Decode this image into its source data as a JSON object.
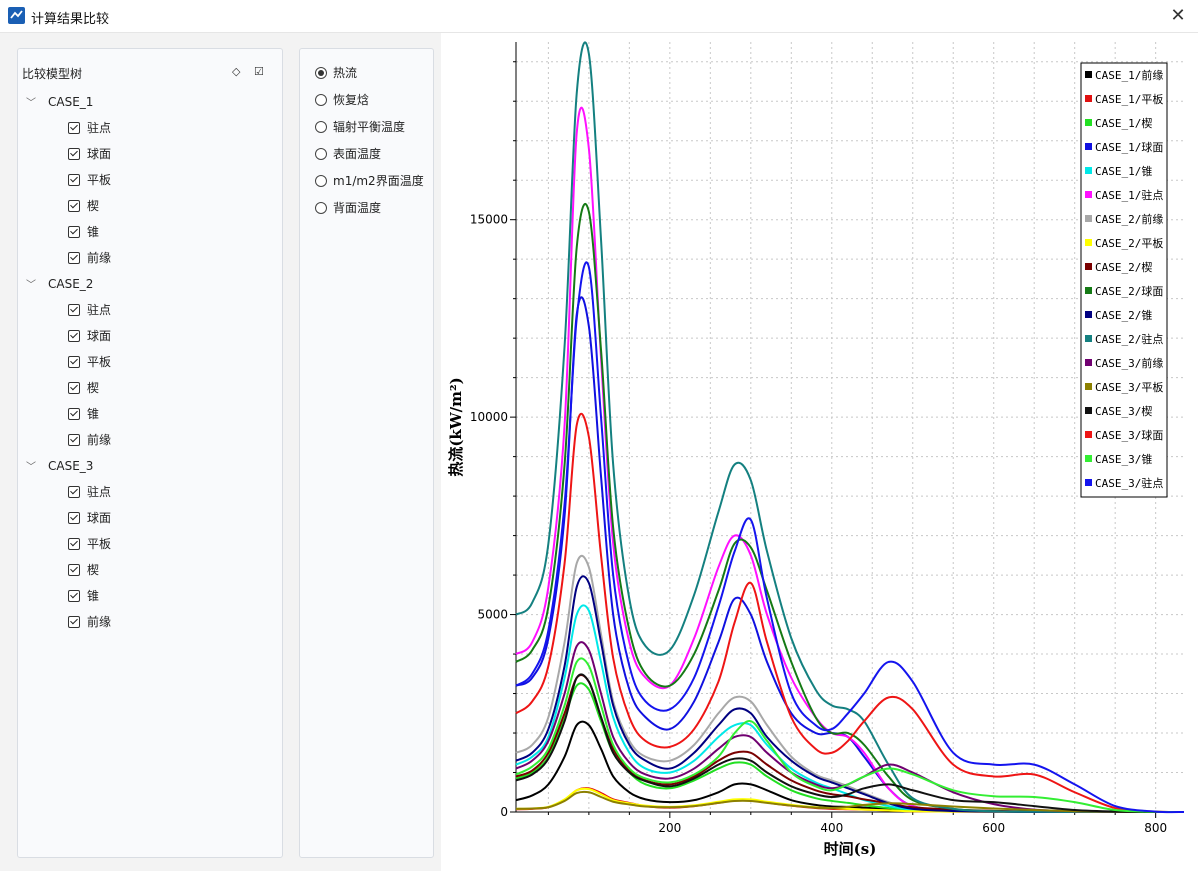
{
  "window": {
    "title": "计算结果比较",
    "close_label": "✕"
  },
  "tree": {
    "title": "比较模型树",
    "cases": [
      {
        "name": "CASE_1",
        "items": [
          "驻点",
          "球面",
          "平板",
          "楔",
          "锥",
          "前缘"
        ]
      },
      {
        "name": "CASE_2",
        "items": [
          "驻点",
          "球面",
          "平板",
          "楔",
          "锥",
          "前缘"
        ]
      },
      {
        "name": "CASE_3",
        "items": [
          "驻点",
          "球面",
          "平板",
          "楔",
          "锥",
          "前缘"
        ]
      }
    ]
  },
  "options": {
    "selected": 0,
    "items": [
      "热流",
      "恢复焓",
      "辐射平衡温度",
      "表面温度",
      "m1/m2界面温度",
      "背面温度"
    ]
  },
  "chart_data": {
    "type": "line",
    "xlabel": "时间(s)",
    "ylabel": "热流(kW/m²)",
    "xlim": [
      10,
      835
    ],
    "ylim": [
      0,
      19500
    ],
    "xticks": [
      200,
      400,
      600,
      800
    ],
    "yticks": [
      0,
      5000,
      10000,
      15000
    ],
    "grid": true,
    "legend_position": "top-right",
    "series": [
      {
        "name": "CASE_1/前缘",
        "color": "#000000",
        "x": [
          10,
          30,
          50,
          70,
          85,
          100,
          115,
          130,
          150,
          170,
          200,
          230,
          260,
          280,
          300,
          320,
          350,
          380,
          400,
          420,
          440,
          470,
          500,
          550,
          600,
          650,
          700,
          750,
          800,
          835
        ],
        "y": [
          300,
          420,
          700,
          1400,
          2200,
          2200,
          1600,
          900,
          500,
          320,
          250,
          300,
          500,
          700,
          700,
          550,
          300,
          180,
          140,
          130,
          110,
          70,
          40,
          20,
          10,
          5,
          0,
          0,
          0,
          0
        ]
      },
      {
        "name": "CASE_1/平板",
        "color": "#e01010",
        "x": [
          10,
          30,
          50,
          70,
          85,
          100,
          115,
          130,
          150,
          170,
          200,
          230,
          260,
          280,
          300,
          320,
          350,
          380,
          400,
          420,
          440,
          470,
          500,
          550,
          600,
          650,
          700,
          750,
          800,
          835
        ],
        "y": [
          70,
          80,
          120,
          300,
          550,
          600,
          480,
          320,
          230,
          150,
          110,
          150,
          230,
          300,
          300,
          240,
          160,
          100,
          80,
          70,
          60,
          40,
          20,
          10,
          5,
          0,
          0,
          0,
          0,
          0
        ]
      },
      {
        "name": "CASE_1/楔",
        "color": "#22e022",
        "x": [
          10,
          30,
          50,
          70,
          85,
          100,
          115,
          130,
          150,
          170,
          200,
          230,
          260,
          280,
          300,
          320,
          350,
          380,
          400,
          420,
          440,
          470,
          500,
          550,
          600,
          650,
          700,
          750,
          800,
          835
        ],
        "y": [
          850,
          1000,
          1400,
          2400,
          3200,
          3100,
          2300,
          1500,
          1000,
          700,
          600,
          800,
          1100,
          1250,
          1200,
          900,
          550,
          350,
          280,
          230,
          170,
          100,
          50,
          20,
          10,
          0,
          0,
          0,
          0,
          0
        ]
      },
      {
        "name": "CASE_1/球面",
        "color": "#1010e0",
        "x": [
          10,
          30,
          50,
          70,
          85,
          100,
          115,
          130,
          150,
          170,
          200,
          230,
          260,
          280,
          300,
          320,
          350,
          380,
          400,
          420,
          440,
          470,
          500,
          550,
          600,
          650,
          700,
          750,
          800,
          835
        ],
        "y": [
          3200,
          3400,
          4400,
          7500,
          12600,
          12300,
          8500,
          5000,
          3100,
          2400,
          2100,
          2800,
          4300,
          5400,
          5000,
          3800,
          2500,
          2000,
          2000,
          1900,
          1400,
          600,
          150,
          40,
          10,
          0,
          0,
          0,
          0,
          0
        ]
      },
      {
        "name": "CASE_1/锥",
        "color": "#00e8e8",
        "x": [
          10,
          30,
          50,
          70,
          85,
          100,
          115,
          130,
          150,
          170,
          200,
          230,
          260,
          280,
          300,
          320,
          350,
          380,
          400,
          420,
          440,
          470,
          500,
          550,
          600,
          650,
          700,
          750,
          800,
          835
        ],
        "y": [
          1200,
          1400,
          1900,
          3400,
          5000,
          5100,
          3800,
          2400,
          1500,
          1100,
          1000,
          1300,
          1900,
          2200,
          2200,
          1700,
          1100,
          750,
          600,
          450,
          300,
          150,
          60,
          20,
          10,
          0,
          0,
          0,
          0,
          0
        ]
      },
      {
        "name": "CASE_1/驻点",
        "color": "#ff10ff",
        "x": [
          10,
          30,
          50,
          70,
          85,
          100,
          115,
          130,
          150,
          170,
          200,
          230,
          260,
          280,
          300,
          320,
          350,
          380,
          400,
          420,
          440,
          470,
          500,
          550,
          600,
          650,
          700,
          750,
          800,
          835
        ],
        "y": [
          4000,
          4300,
          5700,
          9800,
          17200,
          16800,
          11500,
          6800,
          4300,
          3400,
          3200,
          4400,
          6200,
          7000,
          6500,
          5000,
          3400,
          2400,
          2000,
          1900,
          1500,
          600,
          150,
          40,
          10,
          0,
          0,
          0,
          0,
          0
        ]
      },
      {
        "name": "CASE_2/前缘",
        "color": "#a8a8a8",
        "x": [
          10,
          30,
          50,
          70,
          85,
          100,
          115,
          130,
          150,
          170,
          200,
          230,
          260,
          280,
          300,
          320,
          350,
          380,
          400,
          420,
          440,
          470,
          500,
          550,
          600,
          650,
          700,
          750,
          800,
          835
        ],
        "y": [
          1500,
          1700,
          2400,
          4300,
          6300,
          6200,
          4500,
          2800,
          1800,
          1400,
          1300,
          1700,
          2500,
          2900,
          2800,
          2200,
          1400,
          950,
          800,
          650,
          480,
          250,
          90,
          30,
          10,
          0,
          0,
          0,
          0,
          0
        ]
      },
      {
        "name": "CASE_2/平板",
        "color": "#ffff00",
        "x": [
          10,
          30,
          50,
          70,
          85,
          100,
          115,
          130,
          150,
          170,
          200,
          230,
          260,
          280,
          300,
          320,
          350,
          380,
          400,
          420,
          440,
          470,
          500,
          550,
          600,
          650,
          700,
          750,
          800,
          835
        ],
        "y": [
          80,
          90,
          130,
          320,
          550,
          580,
          450,
          300,
          220,
          160,
          130,
          170,
          260,
          320,
          320,
          260,
          180,
          120,
          100,
          80,
          60,
          40,
          20,
          10,
          5,
          0,
          0,
          0,
          0,
          0
        ]
      },
      {
        "name": "CASE_2/楔",
        "color": "#7a0000",
        "x": [
          10,
          30,
          50,
          70,
          85,
          100,
          115,
          130,
          150,
          170,
          200,
          230,
          260,
          280,
          300,
          320,
          350,
          380,
          400,
          420,
          440,
          470,
          500,
          550,
          600,
          650,
          700,
          750,
          800,
          835
        ],
        "y": [
          900,
          1050,
          1500,
          2500,
          3400,
          3300,
          2400,
          1600,
          1050,
          800,
          700,
          900,
          1300,
          1500,
          1500,
          1200,
          800,
          550,
          450,
          400,
          320,
          220,
          120,
          60,
          30,
          10,
          0,
          0,
          0,
          0
        ]
      },
      {
        "name": "CASE_2/球面",
        "color": "#157a15",
        "x": [
          10,
          30,
          50,
          70,
          85,
          100,
          115,
          130,
          150,
          170,
          200,
          230,
          260,
          280,
          300,
          320,
          350,
          380,
          400,
          420,
          440,
          470,
          500,
          550,
          600,
          650,
          700,
          750,
          800,
          835
        ],
        "y": [
          3800,
          4100,
          5200,
          8800,
          14300,
          15200,
          11700,
          7200,
          4600,
          3500,
          3200,
          4000,
          5600,
          6800,
          6700,
          5600,
          3800,
          2400,
          2000,
          2000,
          1700,
          900,
          300,
          80,
          20,
          5,
          0,
          0,
          0,
          0
        ]
      },
      {
        "name": "CASE_2/锥",
        "color": "#000080",
        "x": [
          10,
          30,
          50,
          70,
          85,
          100,
          115,
          130,
          150,
          170,
          200,
          230,
          260,
          280,
          300,
          320,
          350,
          380,
          400,
          420,
          440,
          470,
          500,
          550,
          600,
          650,
          700,
          750,
          800,
          835
        ],
        "y": [
          1300,
          1500,
          2100,
          3700,
          5700,
          5800,
          4300,
          2700,
          1700,
          1300,
          1100,
          1500,
          2200,
          2600,
          2500,
          1900,
          1300,
          900,
          750,
          600,
          450,
          220,
          80,
          25,
          10,
          0,
          0,
          0,
          0,
          0
        ]
      },
      {
        "name": "CASE_2/驻点",
        "color": "#148080",
        "x": [
          10,
          30,
          50,
          70,
          85,
          100,
          115,
          130,
          150,
          170,
          200,
          230,
          260,
          280,
          300,
          320,
          350,
          380,
          400,
          420,
          440,
          470,
          500,
          550,
          600,
          650,
          700,
          750,
          800,
          835
        ],
        "y": [
          5000,
          5300,
          6800,
          11800,
          18200,
          19200,
          14500,
          8800,
          5400,
          4200,
          4100,
          5500,
          7600,
          8800,
          8400,
          6600,
          4400,
          3100,
          2700,
          2600,
          2300,
          1200,
          350,
          80,
          20,
          5,
          0,
          0,
          0,
          0
        ]
      },
      {
        "name": "CASE_3/前缘",
        "color": "#700070",
        "x": [
          10,
          30,
          50,
          70,
          85,
          100,
          115,
          130,
          150,
          170,
          200,
          230,
          260,
          280,
          300,
          320,
          350,
          380,
          400,
          420,
          440,
          470,
          500,
          550,
          600,
          650,
          700,
          750,
          800,
          835
        ],
        "y": [
          1100,
          1300,
          1800,
          3000,
          4200,
          4100,
          3000,
          1900,
          1250,
          950,
          850,
          1100,
          1600,
          1900,
          1900,
          1500,
          1000,
          700,
          600,
          700,
          900,
          1200,
          1000,
          500,
          200,
          60,
          20,
          5,
          0,
          0
        ]
      },
      {
        "name": "CASE_3/平板",
        "color": "#8c8000",
        "x": [
          10,
          30,
          50,
          70,
          85,
          100,
          115,
          130,
          150,
          170,
          200,
          230,
          260,
          280,
          300,
          320,
          350,
          380,
          400,
          420,
          440,
          470,
          500,
          550,
          600,
          650,
          700,
          750,
          800,
          835
        ],
        "y": [
          80,
          90,
          120,
          280,
          480,
          500,
          380,
          260,
          190,
          140,
          120,
          150,
          230,
          280,
          280,
          230,
          160,
          110,
          100,
          130,
          180,
          220,
          200,
          140,
          90,
          50,
          20,
          5,
          0,
          0
        ]
      },
      {
        "name": "CASE_3/楔",
        "color": "#111111",
        "x": [
          10,
          30,
          50,
          70,
          85,
          100,
          115,
          130,
          150,
          170,
          200,
          230,
          260,
          280,
          300,
          320,
          350,
          380,
          400,
          420,
          440,
          470,
          500,
          550,
          600,
          650,
          700,
          750,
          800,
          835
        ],
        "y": [
          800,
          950,
          1350,
          2300,
          3400,
          3300,
          2400,
          1500,
          1000,
          780,
          650,
          850,
          1200,
          1350,
          1300,
          1000,
          650,
          450,
          380,
          450,
          600,
          700,
          550,
          300,
          250,
          150,
          50,
          10,
          0,
          0
        ]
      },
      {
        "name": "CASE_3/球面",
        "color": "#ee1515",
        "x": [
          10,
          30,
          50,
          70,
          85,
          100,
          115,
          130,
          150,
          170,
          200,
          230,
          260,
          280,
          300,
          320,
          350,
          380,
          400,
          420,
          440,
          470,
          500,
          550,
          600,
          650,
          700,
          750,
          800,
          835
        ],
        "y": [
          2500,
          2800,
          3700,
          6300,
          9800,
          9500,
          6500,
          3900,
          2400,
          1800,
          1650,
          2100,
          3300,
          4800,
          5800,
          4300,
          2400,
          1600,
          1500,
          1800,
          2300,
          2900,
          2600,
          1200,
          900,
          950,
          500,
          100,
          10,
          0
        ]
      },
      {
        "name": "CASE_3/锥",
        "color": "#33ee33",
        "x": [
          10,
          30,
          50,
          70,
          85,
          100,
          115,
          130,
          150,
          170,
          200,
          230,
          260,
          280,
          300,
          320,
          350,
          380,
          400,
          420,
          440,
          470,
          500,
          550,
          600,
          650,
          700,
          750,
          800,
          835
        ],
        "y": [
          950,
          1150,
          1600,
          2700,
          3800,
          3700,
          2700,
          1700,
          1100,
          850,
          750,
          950,
          1400,
          2000,
          2300,
          1800,
          1000,
          650,
          550,
          700,
          900,
          1100,
          950,
          550,
          400,
          380,
          250,
          50,
          5,
          0
        ]
      },
      {
        "name": "CASE_3/驻点",
        "color": "#1414ee",
        "x": [
          10,
          30,
          50,
          70,
          85,
          100,
          115,
          130,
          150,
          170,
          200,
          230,
          260,
          280,
          300,
          320,
          350,
          380,
          400,
          420,
          440,
          470,
          500,
          550,
          600,
          650,
          700,
          750,
          800,
          835
        ],
        "y": [
          3200,
          3500,
          4600,
          7800,
          12500,
          13800,
          10000,
          6000,
          3700,
          2800,
          2600,
          3400,
          5200,
          6600,
          7400,
          5400,
          3000,
          2200,
          2100,
          2500,
          3000,
          3800,
          3300,
          1500,
          1200,
          1200,
          700,
          150,
          10,
          0
        ]
      }
    ]
  }
}
